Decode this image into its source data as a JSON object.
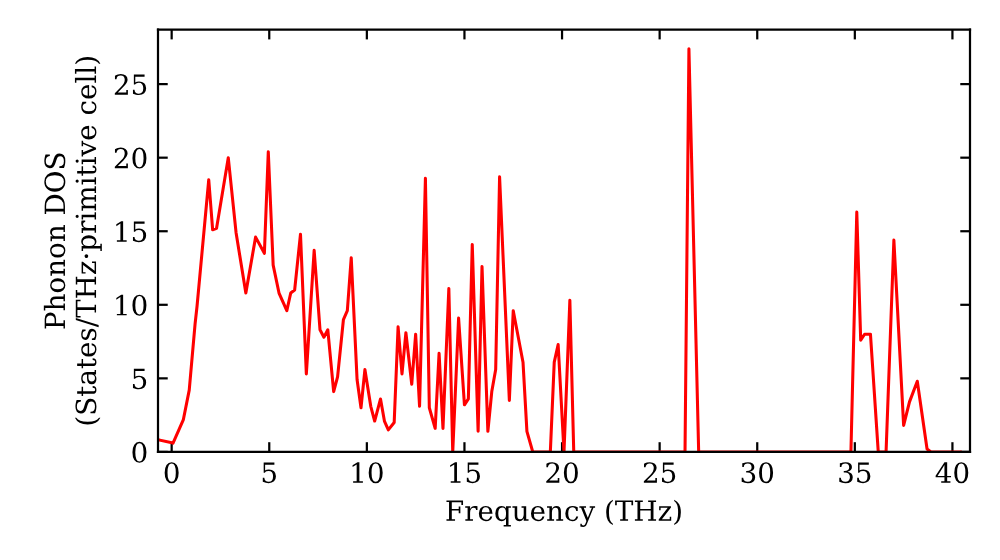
{
  "chart_data": {
    "type": "line",
    "xlabel": "Frequency (THz)",
    "ylabel": "Phonon DOS\n(States/THz·primitive cell)",
    "xlim": [
      -0.7,
      40.9
    ],
    "ylim": [
      0,
      28.7
    ],
    "xticks": [
      0,
      5,
      10,
      15,
      20,
      25,
      30,
      35,
      40
    ],
    "yticks": [
      0,
      5,
      10,
      15,
      20,
      25
    ],
    "grid": false,
    "legend": false,
    "marker": "none",
    "line_style": "solid",
    "series": [
      {
        "color": "#ff0000",
        "x": [
          -0.6,
          0.07,
          0.6,
          0.9,
          1.2,
          1.3,
          1.9,
          2.1,
          2.3,
          2.9,
          3.3,
          3.8,
          4.3,
          4.75,
          4.95,
          5.2,
          5.5,
          5.9,
          6.1,
          6.3,
          6.6,
          6.9,
          7.3,
          7.6,
          7.8,
          8.0,
          8.3,
          8.5,
          8.8,
          9.0,
          9.2,
          9.5,
          9.7,
          9.9,
          10.2,
          10.4,
          10.7,
          10.9,
          11.1,
          11.4,
          11.6,
          11.8,
          12.0,
          12.3,
          12.5,
          12.7,
          13.0,
          13.2,
          13.5,
          13.7,
          13.9,
          14.2,
          14.4,
          14.7,
          15.0,
          15.2,
          15.4,
          15.7,
          15.9,
          16.2,
          16.4,
          16.6,
          16.8,
          17.3,
          17.5,
          18.0,
          18.2,
          18.5,
          19.4,
          19.6,
          19.8,
          20.1,
          20.4,
          20.6,
          26.3,
          26.5,
          27.0,
          34.8,
          35.1,
          35.3,
          35.5,
          35.8,
          36.2,
          36.6,
          37.0,
          37.5,
          37.8,
          38.2,
          38.7,
          38.9,
          40.4
        ],
        "values": [
          0.8,
          0.6,
          2.2,
          4.2,
          8.7,
          9.9,
          18.5,
          15.1,
          15.2,
          20.0,
          14.9,
          10.8,
          14.6,
          13.5,
          20.4,
          12.7,
          10.8,
          9.6,
          10.8,
          11.0,
          14.8,
          5.3,
          13.7,
          8.3,
          7.8,
          8.3,
          4.1,
          5.1,
          9.0,
          9.6,
          13.2,
          4.9,
          3.0,
          5.6,
          3.1,
          2.1,
          3.6,
          2.1,
          1.5,
          2.0,
          8.5,
          5.3,
          8.1,
          4.6,
          8.0,
          3.1,
          18.6,
          3.0,
          1.6,
          6.7,
          1.6,
          11.1,
          0,
          9.1,
          3.2,
          3.6,
          14.1,
          1.4,
          12.6,
          1.4,
          4.1,
          5.6,
          18.7,
          3.5,
          9.6,
          6.1,
          1.4,
          0,
          0,
          6.1,
          7.3,
          0,
          10.3,
          0,
          0,
          27.4,
          0,
          0,
          16.3,
          7.6,
          8.0,
          8.0,
          0,
          0,
          14.4,
          1.8,
          3.4,
          4.8,
          0.2,
          0,
          0
        ]
      }
    ]
  }
}
